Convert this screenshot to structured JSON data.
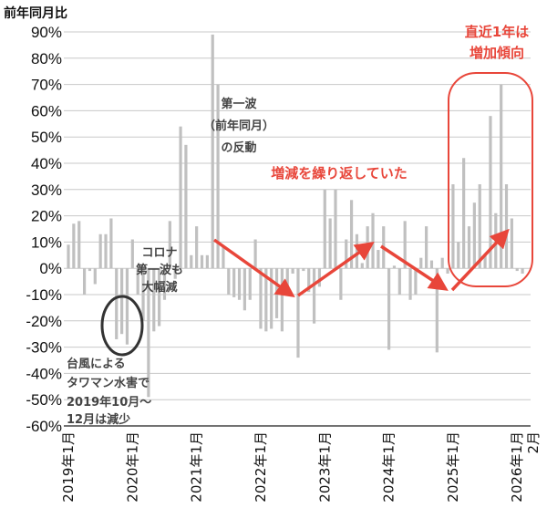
{
  "chart_data": {
    "type": "bar",
    "ylabel": "前年同月比",
    "ylim": [
      -60,
      90
    ],
    "y_ticks": [
      "90%",
      "80%",
      "70%",
      "60%",
      "50%",
      "40%",
      "30%",
      "20%",
      "10%",
      "0%",
      "-10%",
      "-20%",
      "-30%",
      "-40%",
      "-50%",
      "-60%"
    ],
    "y_tick_values": [
      90,
      80,
      70,
      60,
      50,
      40,
      30,
      20,
      10,
      0,
      -10,
      -20,
      -30,
      -40,
      -50,
      -60
    ],
    "x_start": "2019-01",
    "x_end": "2026-02",
    "x_tick_labels": [
      {
        "month": "2019-01",
        "label": "2019年1月"
      },
      {
        "month": "2020-01",
        "label": "2020年1月"
      },
      {
        "month": "2021-01",
        "label": "2021年1月"
      },
      {
        "month": "2022-01",
        "label": "2022年1月"
      },
      {
        "month": "2023-01",
        "label": "2023年1月"
      },
      {
        "month": "2024-01",
        "label": "2024年1月"
      },
      {
        "month": "2025-01",
        "label": "2025年1月"
      },
      {
        "month": "2026-01",
        "label": "2026年1月"
      },
      {
        "month": "2026-02",
        "label": "2月"
      }
    ],
    "values": [
      9,
      17,
      18,
      -10,
      -1,
      -6,
      13,
      13,
      19,
      -27,
      -25,
      -29,
      11,
      -10,
      -20,
      -49,
      -24,
      -22,
      -12,
      18,
      -4,
      54,
      47,
      5,
      16,
      5,
      5,
      89,
      70,
      8,
      -10,
      -11,
      -12,
      -16,
      -12,
      11,
      -23,
      -24,
      -23,
      -19,
      -24,
      -8,
      -2,
      -34,
      -1,
      -9,
      -21,
      -7,
      30,
      19,
      30,
      -12,
      11,
      26,
      13,
      2,
      16,
      21,
      7,
      16,
      -31,
      1,
      -10,
      18,
      -12,
      -10,
      4,
      16,
      3,
      -32,
      4,
      -2,
      32,
      10,
      42,
      16,
      25,
      32,
      5,
      58,
      21,
      70,
      32,
      19,
      -1,
      -2
    ],
    "grid": true,
    "bar_color": "#c0c0c0",
    "annotations": {
      "rebound": [
        "第一波",
        "（前年同月）",
        "の反動"
      ],
      "corona": [
        "コロナ",
        "第一波も",
        "大幅減"
      ],
      "typhoon": [
        "台風による",
        "タワマン水害で",
        "2019年10月～",
        "12月は減少"
      ],
      "repeat": "増減を繰り返していた",
      "recent": [
        "直近1年は",
        "増加傾向"
      ]
    },
    "accent_color": "#e8463a"
  }
}
